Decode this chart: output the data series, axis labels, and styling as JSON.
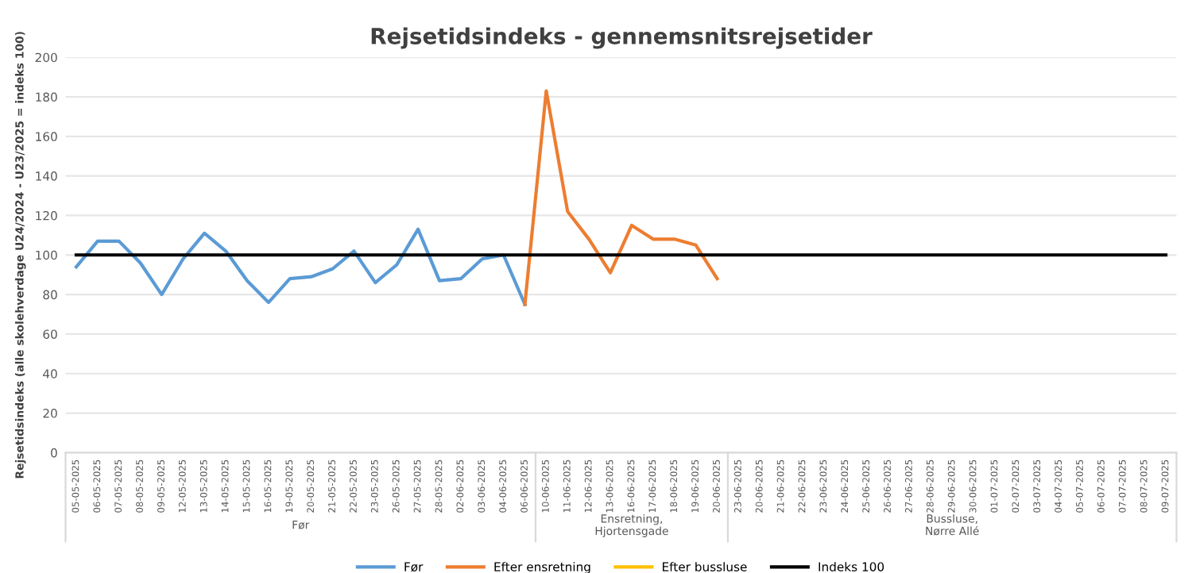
{
  "chart_data": {
    "type": "line",
    "title": "Rejsetidsindeks - gennemsnitsrejsetider",
    "ylabel": "Rejsetidsindeks (alle skolehverdage U24/2024 - U23/2025 = indeks 100)",
    "categories": [
      "05-05-2025",
      "06-05-2025",
      "07-05-2025",
      "08-05-2025",
      "09-05-2025",
      "12-05-2025",
      "13-05-2025",
      "14-05-2025",
      "15-05-2025",
      "16-05-2025",
      "19-05-2025",
      "20-05-2025",
      "21-05-2025",
      "22-05-2025",
      "23-05-2025",
      "26-05-2025",
      "27-05-2025",
      "28-05-2025",
      "02-06-2025",
      "03-06-2025",
      "04-06-2025",
      "06-06-2025",
      "10-06-2025",
      "11-06-2025",
      "12-06-2025",
      "13-06-2025",
      "16-06-2025",
      "17-06-2025",
      "18-06-2025",
      "19-06-2025",
      "20-06-2025",
      "23-06-2025",
      "20-06-2025",
      "21-06-2025",
      "22-06-2025",
      "23-06-2025",
      "24-06-2025",
      "25-06-2025",
      "26-06-2025",
      "27-06-2025",
      "28-06-2025",
      "29-06-2025",
      "30-06-2025",
      "01-07-2025",
      "02-07-2025",
      "03-07-2025",
      "04-07-2025",
      "05-07-2025",
      "06-07-2025",
      "07-07-2025",
      "08-07-2025",
      "09-07-2025"
    ],
    "series": [
      {
        "name": "Før",
        "color": "#5b9bd5",
        "values": [
          94,
          107,
          107,
          96,
          80,
          98,
          111,
          102,
          87,
          76,
          88,
          89,
          93,
          102,
          86,
          95,
          113,
          87,
          88,
          98,
          100,
          75,
          null,
          null,
          null,
          null,
          null,
          null,
          null,
          null,
          null,
          null,
          null,
          null,
          null,
          null,
          null,
          null,
          null,
          null,
          null,
          null,
          null,
          null,
          null,
          null,
          null,
          null,
          null,
          null,
          null,
          null
        ]
      },
      {
        "name": "Efter ensretning",
        "color": "#ed7d31",
        "values": [
          null,
          null,
          null,
          null,
          null,
          null,
          null,
          null,
          null,
          null,
          null,
          null,
          null,
          null,
          null,
          null,
          null,
          null,
          null,
          null,
          null,
          75,
          183,
          122,
          108,
          91,
          115,
          108,
          108,
          105,
          88,
          null,
          null,
          null,
          null,
          null,
          null,
          null,
          null,
          null,
          null,
          null,
          null,
          null,
          null,
          null,
          null,
          null,
          null,
          null,
          null,
          null
        ]
      },
      {
        "name": "Efter bussluse",
        "color": "#ffc000",
        "values": [
          null,
          null,
          null,
          null,
          null,
          null,
          null,
          null,
          null,
          null,
          null,
          null,
          null,
          null,
          null,
          null,
          null,
          null,
          null,
          null,
          null,
          null,
          null,
          null,
          null,
          null,
          null,
          null,
          null,
          null,
          null,
          null,
          null,
          null,
          null,
          null,
          null,
          null,
          null,
          null,
          null,
          null,
          null,
          null,
          null,
          null,
          null,
          null,
          null,
          null,
          null,
          null
        ]
      },
      {
        "name": "Indeks 100",
        "color": "#000000",
        "values": [
          100,
          100,
          100,
          100,
          100,
          100,
          100,
          100,
          100,
          100,
          100,
          100,
          100,
          100,
          100,
          100,
          100,
          100,
          100,
          100,
          100,
          100,
          100,
          100,
          100,
          100,
          100,
          100,
          100,
          100,
          100,
          100,
          100,
          100,
          100,
          100,
          100,
          100,
          100,
          100,
          100,
          100,
          100,
          100,
          100,
          100,
          100,
          100,
          100,
          100,
          100,
          100
        ]
      }
    ],
    "annotations": [
      "Før",
      "Ensretning,\nHjortensgade",
      "Bussluse,\nNørre Allé"
    ],
    "ylim": [
      0,
      200
    ],
    "yticks": [
      0,
      20,
      40,
      60,
      80,
      100,
      120,
      140,
      160,
      180,
      200
    ],
    "grid": "y",
    "legend": "bottom",
    "marker": "none",
    "line_style": "solid"
  }
}
